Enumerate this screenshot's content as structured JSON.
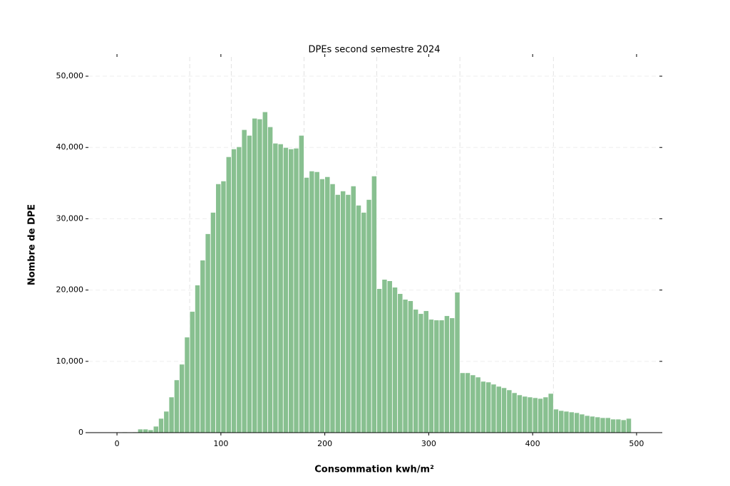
{
  "chart_data": {
    "type": "histogram",
    "title": "DPEs second semestre 2024",
    "x_label": "Consommation kwh/m²",
    "y_label": "Nombre de DPE",
    "color": "#88c090",
    "bins": [
      0,
      5,
      10,
      15,
      20,
      25,
      30,
      35,
      40,
      45,
      50,
      55,
      60,
      65,
      70,
      75,
      80,
      85,
      90,
      95,
      100,
      105,
      110,
      115,
      120,
      125,
      130,
      135,
      140,
      145,
      150,
      155,
      160,
      165,
      170,
      175,
      180,
      185,
      190,
      195,
      200,
      205,
      210,
      215,
      220,
      225,
      230,
      235,
      240,
      245,
      250,
      255,
      260,
      265,
      270,
      275,
      280,
      285,
      290,
      295,
      300,
      305,
      310,
      315,
      320,
      325,
      330,
      335,
      340,
      345,
      350,
      355,
      360,
      365,
      370,
      375,
      380,
      385,
      390,
      395,
      400,
      405,
      410,
      415,
      420,
      425,
      430,
      435,
      440,
      445,
      450,
      455,
      460,
      465,
      470,
      475,
      480,
      485,
      490,
      495
    ],
    "values": [
      0,
      100,
      0,
      100,
      500,
      500,
      400,
      900,
      2000,
      3000,
      5000,
      7400,
      9600,
      13400,
      17000,
      20700,
      24200,
      27900,
      30900,
      34900,
      35300,
      38700,
      39800,
      40100,
      42500,
      41700,
      44100,
      44000,
      45000,
      42900,
      40600,
      40500,
      40000,
      39800,
      39900,
      41700,
      35800,
      36700,
      36600,
      35600,
      35900,
      34900,
      33400,
      33900,
      33400,
      34600,
      31900,
      30900,
      32700,
      36000,
      20200,
      21500,
      21300,
      20400,
      19500,
      18700,
      18500,
      17300,
      16700,
      17100,
      15900,
      15800,
      15800,
      16400,
      16100,
      19700,
      8400,
      8400,
      8100,
      7800,
      7200,
      7100,
      6800,
      6500,
      6300,
      6000,
      5600,
      5300,
      5100,
      5000,
      4900,
      4800,
      5000,
      5500,
      3300,
      3100,
      3000,
      2900,
      2800,
      2600,
      2400,
      2300,
      2200,
      2100,
      2100,
      1900,
      1900,
      1800,
      2000
    ],
    "xlim": [
      -27.5,
      522
    ],
    "ylim": [
      0,
      52700
    ],
    "xticks": [
      0,
      100,
      200,
      300,
      400,
      500
    ],
    "yticks": [
      0,
      {
        "value": 10000,
        "label": "10,000"
      },
      {
        "value": 20000,
        "label": "20,000"
      },
      {
        "value": 30000,
        "label": "30,000"
      },
      {
        "value": 40000,
        "label": "40,000"
      },
      {
        "value": 50000,
        "label": "50,000"
      }
    ],
    "vlines": [
      70,
      110,
      180,
      250,
      330,
      420
    ],
    "grid": true
  }
}
